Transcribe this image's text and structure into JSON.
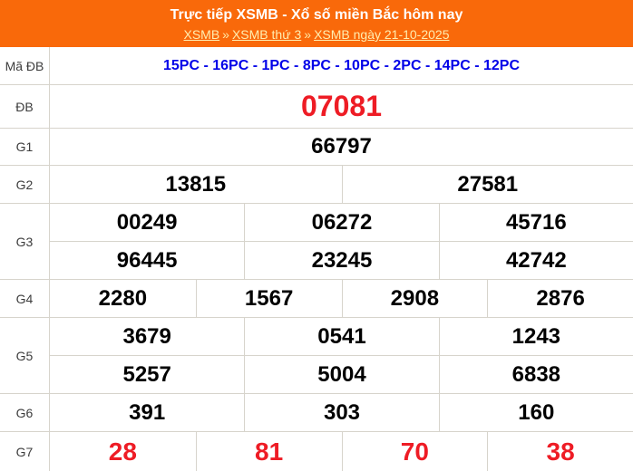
{
  "header": {
    "title": "Trực tiếp XSMB - Xổ số miền Bắc hôm nay",
    "separator": "»",
    "breadcrumb": [
      "XSMB",
      "XSMB thứ 3",
      "XSMB ngày 21-10-2025"
    ]
  },
  "colors": {
    "header_background": "#F9690A",
    "title_text": "#FFFFFF",
    "breadcrumb_link": "#FFEDB0",
    "code_text": "#0101E8",
    "special_prize_text": "#EE1C25",
    "g7_text": "#EE1C25",
    "value_text": "#000000",
    "border": "#D7D4CC"
  },
  "table": {
    "rows": [
      {
        "label": "Mã ĐB",
        "cells": [
          [
            "15PC - 16PC - 1PC - 8PC - 10PC - 2PC - 14PC - 12PC"
          ]
        ]
      },
      {
        "label": "ĐB",
        "cells": [
          [
            "07081"
          ]
        ]
      },
      {
        "label": "G1",
        "cells": [
          [
            "66797"
          ]
        ]
      },
      {
        "label": "G2",
        "cells": [
          [
            "13815",
            "27581"
          ]
        ]
      },
      {
        "label": "G3",
        "cells": [
          [
            "00249",
            "06272",
            "45716"
          ],
          [
            "96445",
            "23245",
            "42742"
          ]
        ]
      },
      {
        "label": "G4",
        "cells": [
          [
            "2280",
            "1567",
            "2908",
            "2876"
          ]
        ]
      },
      {
        "label": "G5",
        "cells": [
          [
            "3679",
            "0541",
            "1243"
          ],
          [
            "5257",
            "5004",
            "6838"
          ]
        ]
      },
      {
        "label": "G6",
        "cells": [
          [
            "391",
            "303",
            "160"
          ]
        ]
      },
      {
        "label": "G7",
        "cells": [
          [
            "28",
            "81",
            "70",
            "38"
          ]
        ]
      }
    ]
  }
}
